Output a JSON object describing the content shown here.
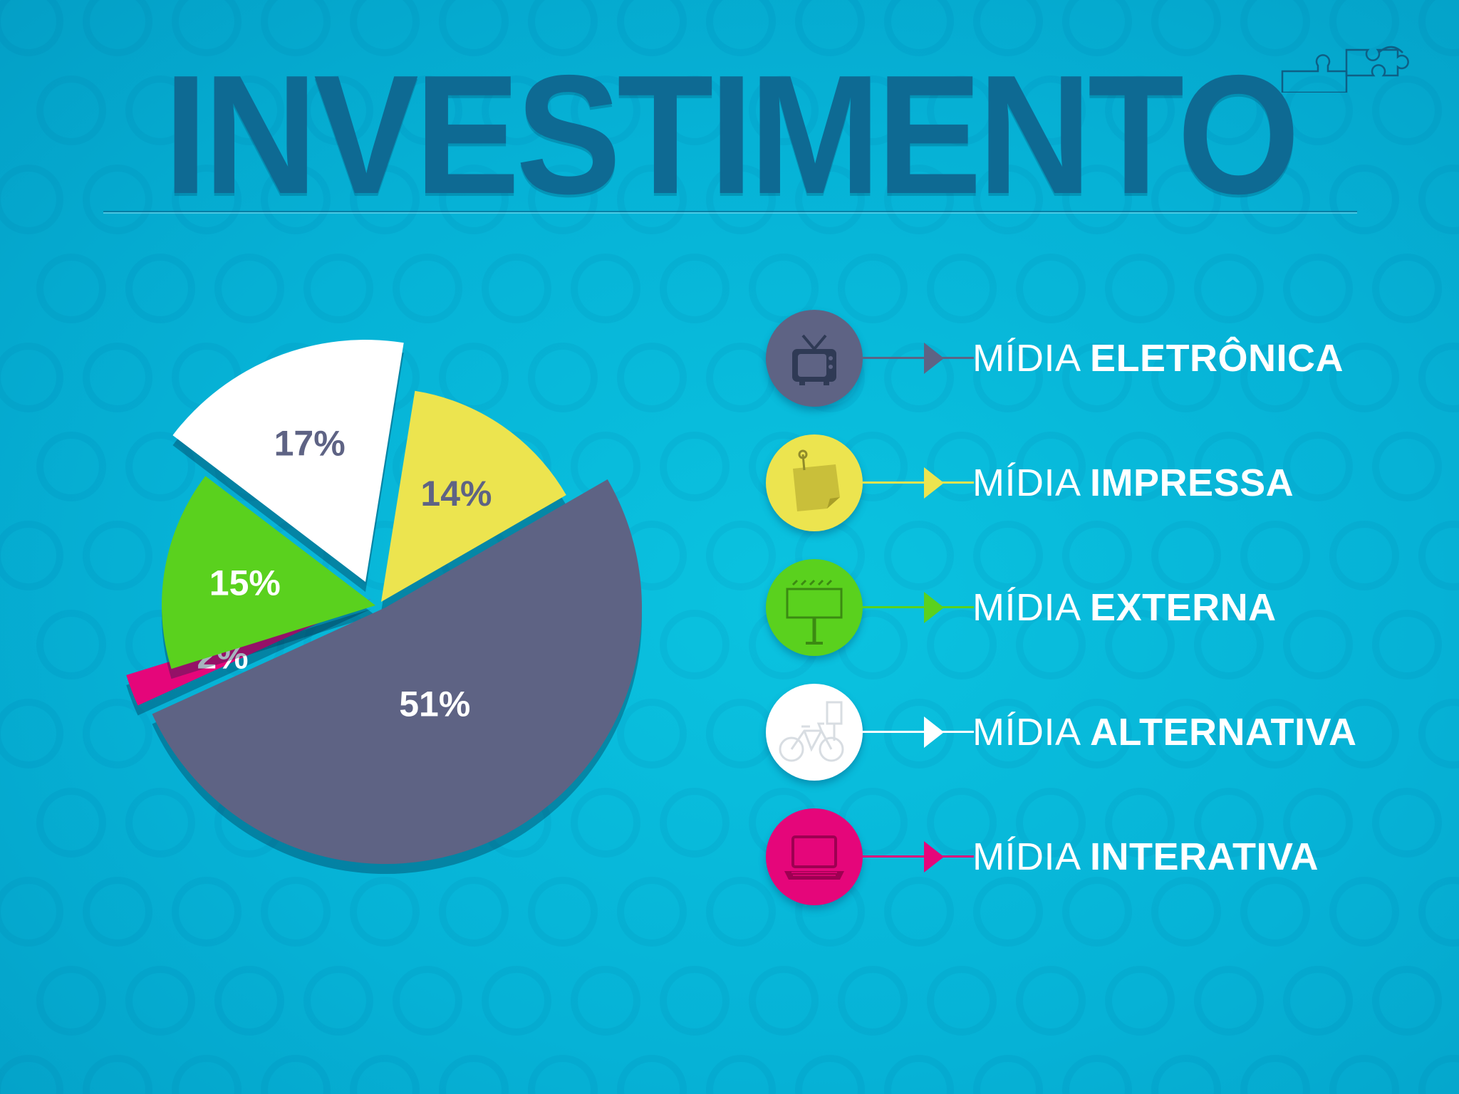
{
  "title": "INVESTIMENTO",
  "colors": {
    "background": "#06b2d6",
    "title": "#0e6a93",
    "eletronica": "#5e6384",
    "impressa": "#ece44f",
    "externa": "#5ad11e",
    "alternativa": "#ffffff",
    "interativa": "#e5067a"
  },
  "legend": [
    {
      "prefix": "MÍDIA",
      "label": "ELETRÔNICA",
      "icon": "tv-icon",
      "color": "#5e6384"
    },
    {
      "prefix": "MÍDIA",
      "label": "IMPRESSA",
      "icon": "sticky-note-icon",
      "color": "#ece44f"
    },
    {
      "prefix": "MÍDIA",
      "label": "EXTERNA",
      "icon": "billboard-icon",
      "color": "#5ad11e"
    },
    {
      "prefix": "MÍDIA",
      "label": "ALTERNATIVA",
      "icon": "bicycle-icon",
      "color": "#ffffff"
    },
    {
      "prefix": "MÍDIA",
      "label": "INTERATIVA",
      "icon": "laptop-icon",
      "color": "#e5067a"
    }
  ],
  "chart_data": {
    "type": "pie",
    "title": "INVESTIMENTO",
    "categories": [
      "MÍDIA ELETRÔNICA",
      "MÍDIA IMPRESSA",
      "MÍDIA EXTERNA",
      "MÍDIA ALTERNATIVA",
      "MÍDIA INTERATIVA"
    ],
    "values": [
      51,
      14,
      15,
      17,
      2
    ],
    "labels": [
      "51%",
      "14%",
      "15%",
      "17%",
      "2%"
    ],
    "legend_position": "right"
  }
}
